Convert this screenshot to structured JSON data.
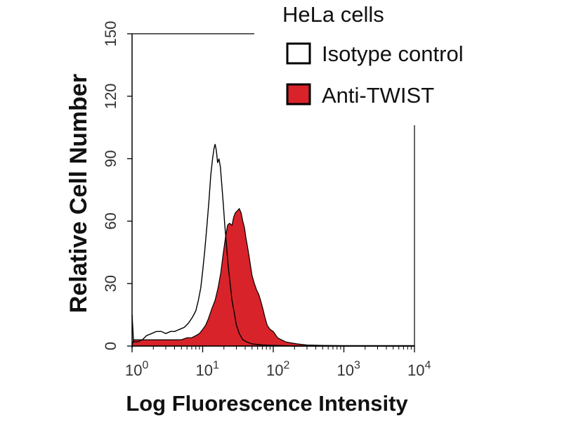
{
  "chart_data": {
    "type": "area",
    "title": "HeLa cells",
    "xlabel": "Log Fluorescence Intensity",
    "ylabel": "Relative Cell Number",
    "x_scale": "log",
    "xlim": [
      1,
      10000
    ],
    "ylim": [
      0,
      150
    ],
    "x_ticks": [
      {
        "value": 1,
        "base": "10",
        "exp": "0"
      },
      {
        "value": 10,
        "base": "10",
        "exp": "1"
      },
      {
        "value": 100,
        "base": "10",
        "exp": "2"
      },
      {
        "value": 1000,
        "base": "10",
        "exp": "3"
      },
      {
        "value": 10000,
        "base": "10",
        "exp": "4"
      }
    ],
    "y_ticks": [
      "0",
      "30",
      "60",
      "90",
      "120",
      "150"
    ],
    "grid": false,
    "legend_position": "top-right",
    "series": [
      {
        "name": "Isotype control",
        "color": "#000000",
        "fill": "none",
        "points": [
          [
            1.0,
            15
          ],
          [
            1.05,
            2
          ],
          [
            1.2,
            2
          ],
          [
            1.4,
            3
          ],
          [
            1.6,
            5
          ],
          [
            1.9,
            6
          ],
          [
            2.2,
            7
          ],
          [
            2.6,
            7
          ],
          [
            3.0,
            6
          ],
          [
            3.5,
            7
          ],
          [
            4.0,
            7
          ],
          [
            4.7,
            8
          ],
          [
            5.5,
            9
          ],
          [
            6.3,
            11
          ],
          [
            7.2,
            14
          ],
          [
            8.0,
            17
          ],
          [
            8.7,
            22
          ],
          [
            9.4,
            28
          ],
          [
            10.0,
            36
          ],
          [
            10.7,
            46
          ],
          [
            11.5,
            58
          ],
          [
            12.3,
            70
          ],
          [
            13.0,
            82
          ],
          [
            13.8,
            90
          ],
          [
            14.5,
            95
          ],
          [
            15.0,
            97
          ],
          [
            15.6,
            94
          ],
          [
            16.3,
            88
          ],
          [
            17.0,
            90
          ],
          [
            17.8,
            86
          ],
          [
            18.6,
            78
          ],
          [
            19.6,
            68
          ],
          [
            20.6,
            58
          ],
          [
            21.8,
            48
          ],
          [
            23.0,
            38
          ],
          [
            24.5,
            30
          ],
          [
            26.0,
            22
          ],
          [
            28.0,
            16
          ],
          [
            30.0,
            10
          ],
          [
            33.0,
            6
          ],
          [
            37.0,
            3
          ],
          [
            42.0,
            2
          ],
          [
            50.0,
            1
          ],
          [
            70.0,
            0.5
          ],
          [
            100.0,
            0.3
          ],
          [
            200.0,
            0
          ],
          [
            10000.0,
            0
          ]
        ]
      },
      {
        "name": "Anti-TWIST",
        "color": "#d9232a",
        "fill": "#d9232a",
        "points": [
          [
            1.0,
            0
          ],
          [
            1.05,
            3
          ],
          [
            1.5,
            3
          ],
          [
            2.0,
            3
          ],
          [
            3.0,
            3
          ],
          [
            4.0,
            3
          ],
          [
            5.0,
            3
          ],
          [
            6.0,
            4
          ],
          [
            7.0,
            4
          ],
          [
            8.0,
            5
          ],
          [
            9.0,
            6
          ],
          [
            10.0,
            8
          ],
          [
            11.0,
            10
          ],
          [
            12.0,
            13
          ],
          [
            13.5,
            18
          ],
          [
            15.0,
            22
          ],
          [
            16.5,
            28
          ],
          [
            18.0,
            35
          ],
          [
            19.5,
            44
          ],
          [
            21.0,
            52
          ],
          [
            22.5,
            58
          ],
          [
            24.0,
            59
          ],
          [
            26.0,
            58
          ],
          [
            27.5,
            62
          ],
          [
            29.0,
            64
          ],
          [
            31.0,
            65
          ],
          [
            33.0,
            66
          ],
          [
            35.0,
            64
          ],
          [
            37.0,
            60
          ],
          [
            39.0,
            57
          ],
          [
            41.0,
            52
          ],
          [
            44.0,
            46
          ],
          [
            47.0,
            40
          ],
          [
            50.0,
            34
          ],
          [
            54.0,
            30
          ],
          [
            58.0,
            27
          ],
          [
            62.0,
            25
          ],
          [
            66.0,
            22
          ],
          [
            71.0,
            18
          ],
          [
            76.0,
            14
          ],
          [
            82.0,
            10
          ],
          [
            90.0,
            8
          ],
          [
            100.0,
            7
          ],
          [
            115.0,
            4
          ],
          [
            130.0,
            3
          ],
          [
            150.0,
            2
          ],
          [
            180.0,
            1.5
          ],
          [
            220.0,
            1
          ],
          [
            300.0,
            0.5
          ],
          [
            500.0,
            0.3
          ],
          [
            1000.0,
            0.2
          ],
          [
            10000.0,
            0.2
          ]
        ]
      }
    ]
  }
}
